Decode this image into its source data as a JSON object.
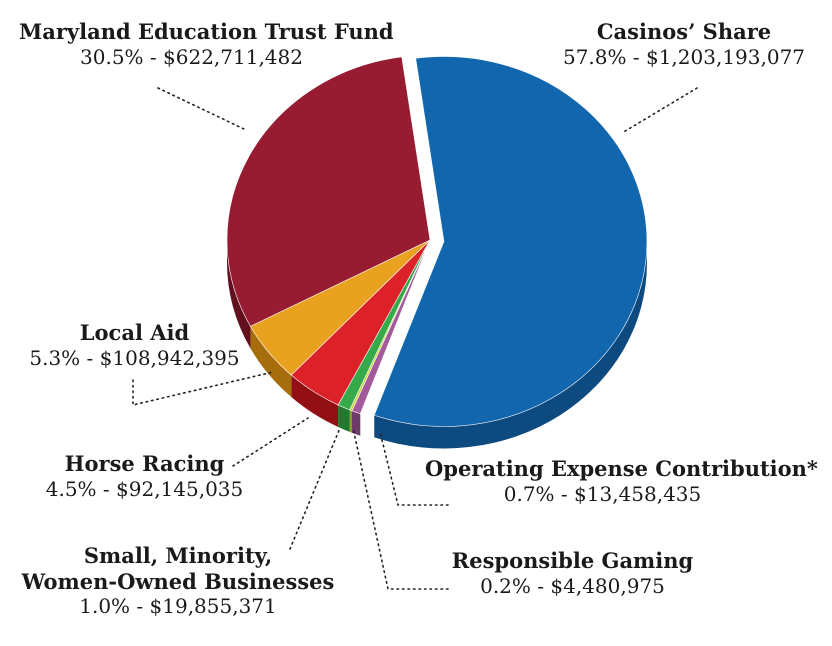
{
  "chart_data": {
    "type": "pie",
    "title": "",
    "slices": [
      {
        "name": "Casinos’ Share",
        "percent": "57.8%",
        "amount": "$1,203,193,077",
        "value": 57.8,
        "color": "#1266ae",
        "side": "#0d4a80"
      },
      {
        "name": "Operating Expense Contribution*",
        "percent": "0.7%",
        "amount": "$13,458,435",
        "value": 0.7,
        "color": "#a35a9c",
        "side": "#6e3a69"
      },
      {
        "name": "Responsible Gaming",
        "percent": "0.2%",
        "amount": "$4,480,975",
        "value": 0.2,
        "color": "#c7d63a",
        "side": "#8c9a1f"
      },
      {
        "name": "Small, Minority, Women-Owned Businesses",
        "percent": "1.0%",
        "amount": "$19,855,371",
        "value": 1.0,
        "color": "#36a94a",
        "side": "#1f7a30"
      },
      {
        "name": "Horse Racing",
        "percent": "4.5%",
        "amount": "$92,145,035",
        "value": 4.5,
        "color": "#dc2128",
        "side": "#920f14"
      },
      {
        "name": "Local Aid",
        "percent": "5.3%",
        "amount": "$108,942,395",
        "value": 5.3,
        "color": "#e8a21f",
        "side": "#a66d0d"
      },
      {
        "name": "Maryland Education Trust Fund",
        "percent": "30.5%",
        "amount": "$622,711,482",
        "value": 30.5,
        "color": "#971c31",
        "side": "#620f1e"
      }
    ],
    "legend": "labels with dotted leader lines"
  },
  "labels": {
    "casinos": {
      "name": "Casinos’ Share",
      "detail": "57.8% - $1,203,193,077"
    },
    "education": {
      "name": "Maryland Education Trust Fund",
      "detail": "30.5% - $622,711,482"
    },
    "local_aid": {
      "name": "Local Aid",
      "detail": "5.3% - $108,942,395"
    },
    "horse_racing": {
      "name": "Horse Racing",
      "detail": "4.5% - $92,145,035"
    },
    "small_minority_line1": "Small, Minority,",
    "small_minority_line2": "Women-Owned Businesses",
    "small_minority_detail": "1.0% - $19,855,371",
    "operating": {
      "name": "Operating Expense Contribution*",
      "detail": "0.7% - $13,458,435"
    },
    "responsible": {
      "name": "Responsible Gaming",
      "detail": "0.2% - $4,480,975"
    }
  }
}
